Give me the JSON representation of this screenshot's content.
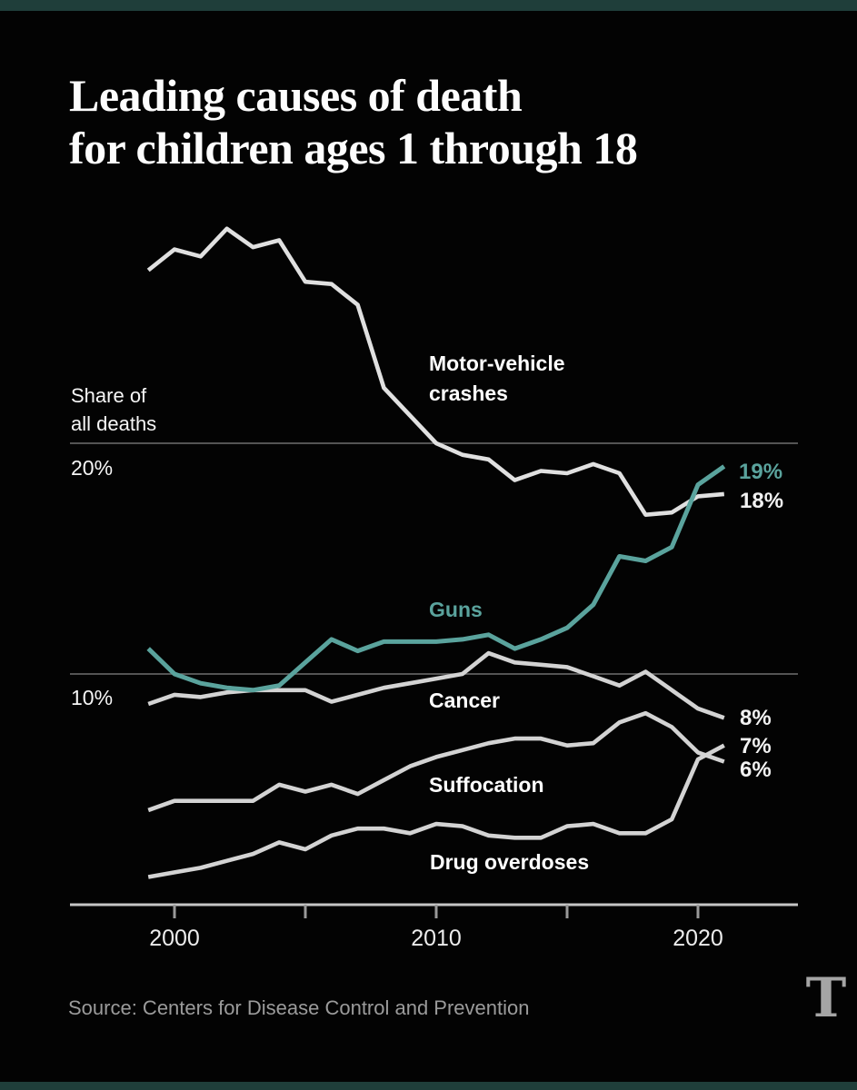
{
  "page": {
    "title_line1": "Leading causes of death",
    "title_line2": "for children ages 1 through 18",
    "source": "Source: Centers for Disease Control and Prevention",
    "logo_glyph": "T",
    "colors": {
      "accent_bar": "#1f3e3a",
      "background": "#030303",
      "teal": "#5aa39d",
      "line_gray": "#d3d3d3",
      "line_gray_bright": "#e0e0e0",
      "gridline": "#707070",
      "axis": "#c6c6c6",
      "tick": "#999999"
    }
  },
  "chart_data": {
    "type": "line",
    "title": "Leading causes of death for children ages 1 through 18",
    "ylabel_line1": "Share of",
    "ylabel_line2": "all deaths",
    "legend_position": "inline-labels",
    "grid": "horizontal-only",
    "x": [
      1999,
      2000,
      2001,
      2002,
      2003,
      2004,
      2005,
      2006,
      2007,
      2008,
      2009,
      2010,
      2011,
      2012,
      2013,
      2014,
      2015,
      2016,
      2017,
      2018,
      2019,
      2020,
      2021
    ],
    "xlim": [
      1999,
      2021
    ],
    "ylim": [
      0,
      30
    ],
    "series": [
      {
        "name": "Motor-vehicle crashes",
        "label_line1": "Motor-vehicle",
        "label_line2": "crashes",
        "color": "#e0e0e0",
        "end_label": "18%",
        "values": [
          27.5,
          28.4,
          28.1,
          29.3,
          28.5,
          28.8,
          27.0,
          26.9,
          26.0,
          22.4,
          21.2,
          20.0,
          19.5,
          19.3,
          18.4,
          18.8,
          18.7,
          19.1,
          18.7,
          16.9,
          17.0,
          17.7,
          17.8
        ]
      },
      {
        "name": "Guns",
        "color": "#5aa39d",
        "end_label": "19%",
        "values": [
          11.1,
          10.0,
          9.6,
          9.4,
          9.3,
          9.5,
          10.5,
          11.5,
          11.0,
          11.4,
          11.4,
          11.4,
          11.5,
          11.7,
          11.1,
          11.5,
          12.0,
          13.0,
          15.1,
          14.9,
          15.5,
          18.2,
          19.0
        ]
      },
      {
        "name": "Cancer",
        "color": "#d3d3d3",
        "end_label": "8%",
        "values": [
          8.7,
          9.1,
          9.0,
          9.2,
          9.3,
          9.3,
          9.3,
          8.8,
          9.1,
          9.4,
          9.6,
          9.8,
          10.0,
          10.9,
          10.5,
          10.4,
          10.3,
          9.9,
          9.5,
          10.1,
          9.3,
          8.5,
          8.1
        ]
      },
      {
        "name": "Suffocation",
        "color": "#d3d3d3",
        "end_label": "6%",
        "values": [
          4.1,
          4.5,
          4.5,
          4.5,
          4.5,
          5.2,
          4.9,
          5.2,
          4.8,
          5.4,
          6.0,
          6.4,
          6.7,
          7.0,
          7.2,
          7.2,
          6.9,
          7.0,
          7.9,
          8.3,
          7.7,
          6.6,
          6.2
        ]
      },
      {
        "name": "Drug overdoses",
        "color": "#d3d3d3",
        "end_label": "7%",
        "values": [
          1.2,
          1.4,
          1.6,
          1.9,
          2.2,
          2.7,
          2.4,
          3.0,
          3.3,
          3.3,
          3.1,
          3.5,
          3.4,
          3.0,
          2.9,
          2.9,
          3.4,
          3.5,
          3.1,
          3.1,
          3.7,
          6.3,
          6.9
        ]
      }
    ],
    "axis": {
      "y_gridlines": [
        {
          "value": 20,
          "label": "20%"
        },
        {
          "value": 10,
          "label": "10%"
        }
      ],
      "x_ticks": [
        2000,
        2005,
        2010,
        2015,
        2020
      ],
      "x_tick_labels": [
        {
          "year": 2000,
          "label": "2000"
        },
        {
          "year": 2010,
          "label": "2010"
        },
        {
          "year": 2020,
          "label": "2020"
        }
      ]
    }
  }
}
